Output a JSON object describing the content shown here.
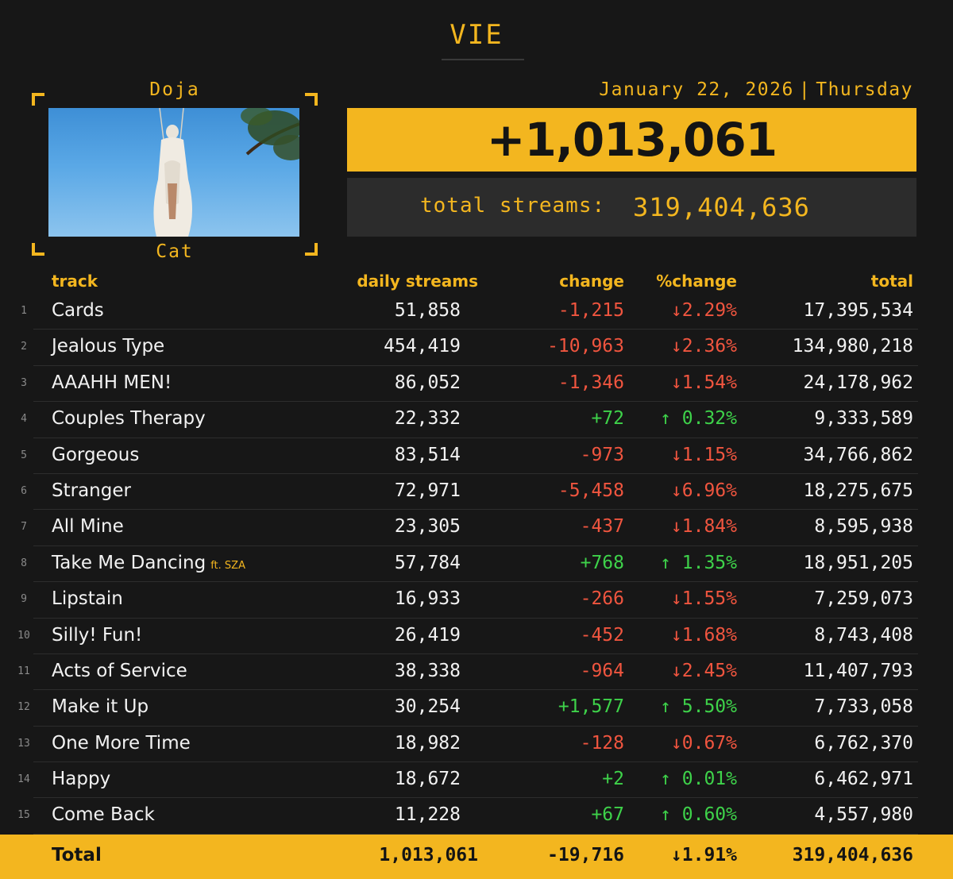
{
  "album": {
    "title": "VIE"
  },
  "artist": {
    "first": "Doja",
    "last": "Cat"
  },
  "date": {
    "full": "January 22, 2026",
    "separator": "|",
    "weekday": "Thursday"
  },
  "headline": {
    "daily_total": "+1,013,061"
  },
  "summary": {
    "total_label": "total streams:",
    "total_value": "319,404,636"
  },
  "colors": {
    "accent": "#f3b61f",
    "background": "#171717",
    "negative": "#f0553f",
    "positive": "#3ed24a"
  },
  "table": {
    "headers": {
      "track": "track",
      "daily": "daily streams",
      "change": "change",
      "pct": "%change",
      "total": "total"
    },
    "rows": [
      {
        "index": "1",
        "name": "Cards",
        "feat": "",
        "daily": "51,858",
        "change": "-1,215",
        "pct": "↓2.29%",
        "total": "17,395,534",
        "dir": "down"
      },
      {
        "index": "2",
        "name": "Jealous Type",
        "feat": "",
        "daily": "454,419",
        "change": "-10,963",
        "pct": "↓2.36%",
        "total": "134,980,218",
        "dir": "down"
      },
      {
        "index": "3",
        "name": "AAAHH MEN!",
        "feat": "",
        "daily": "86,052",
        "change": "-1,346",
        "pct": "↓1.54%",
        "total": "24,178,962",
        "dir": "down"
      },
      {
        "index": "4",
        "name": "Couples Therapy",
        "feat": "",
        "daily": "22,332",
        "change": "+72",
        "pct": "↑ 0.32%",
        "total": "9,333,589",
        "dir": "up"
      },
      {
        "index": "5",
        "name": "Gorgeous",
        "feat": "",
        "daily": "83,514",
        "change": "-973",
        "pct": "↓1.15%",
        "total": "34,766,862",
        "dir": "down"
      },
      {
        "index": "6",
        "name": "Stranger",
        "feat": "",
        "daily": "72,971",
        "change": "-5,458",
        "pct": "↓6.96%",
        "total": "18,275,675",
        "dir": "down"
      },
      {
        "index": "7",
        "name": "All Mine",
        "feat": "",
        "daily": "23,305",
        "change": "-437",
        "pct": "↓1.84%",
        "total": "8,595,938",
        "dir": "down"
      },
      {
        "index": "8",
        "name": "Take Me Dancing",
        "feat": "ft. SZA",
        "daily": "57,784",
        "change": "+768",
        "pct": "↑ 1.35%",
        "total": "18,951,205",
        "dir": "up"
      },
      {
        "index": "9",
        "name": "Lipstain",
        "feat": "",
        "daily": "16,933",
        "change": "-266",
        "pct": "↓1.55%",
        "total": "7,259,073",
        "dir": "down"
      },
      {
        "index": "10",
        "name": "Silly! Fun!",
        "feat": "",
        "daily": "26,419",
        "change": "-452",
        "pct": "↓1.68%",
        "total": "8,743,408",
        "dir": "down"
      },
      {
        "index": "11",
        "name": "Acts of Service",
        "feat": "",
        "daily": "38,338",
        "change": "-964",
        "pct": "↓2.45%",
        "total": "11,407,793",
        "dir": "down"
      },
      {
        "index": "12",
        "name": "Make it Up",
        "feat": "",
        "daily": "30,254",
        "change": "+1,577",
        "pct": "↑ 5.50%",
        "total": "7,733,058",
        "dir": "up"
      },
      {
        "index": "13",
        "name": "One More Time",
        "feat": "",
        "daily": "18,982",
        "change": "-128",
        "pct": "↓0.67%",
        "total": "6,762,370",
        "dir": "down"
      },
      {
        "index": "14",
        "name": "Happy",
        "feat": "",
        "daily": "18,672",
        "change": "+2",
        "pct": "↑ 0.01%",
        "total": "6,462,971",
        "dir": "up"
      },
      {
        "index": "15",
        "name": "Come Back",
        "feat": "",
        "daily": "11,228",
        "change": "+67",
        "pct": "↑ 0.60%",
        "total": "4,557,980",
        "dir": "up"
      }
    ],
    "total_row": {
      "label": "Total",
      "daily": "1,013,061",
      "change": "-19,716",
      "pct": "↓1.91%",
      "total": "319,404,636"
    }
  }
}
